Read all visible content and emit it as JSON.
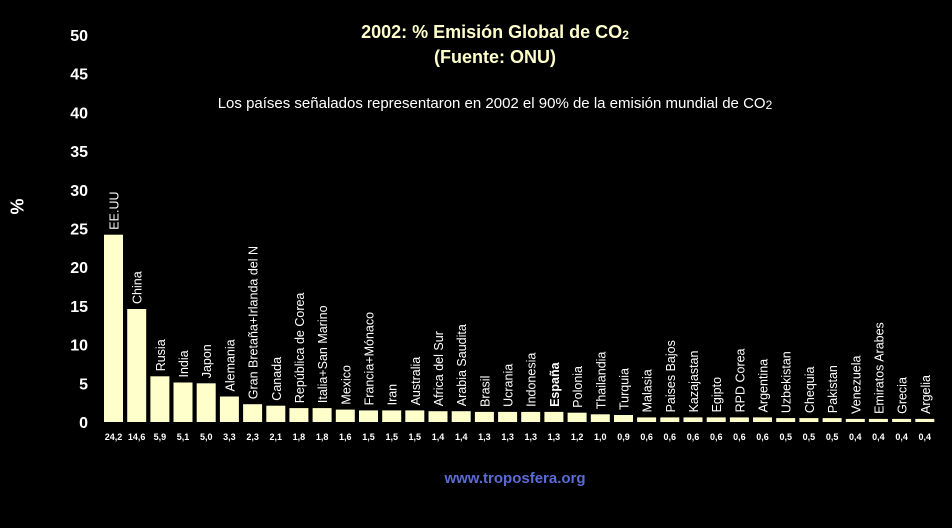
{
  "title": {
    "main": "2002: % Emisión Global de CO",
    "sub": "2"
  },
  "subtitle": "(Fuente: ONU)",
  "note": {
    "main": "Los países señalados representaron en 2002 el 90% de la emisión mundial de CO",
    "sub": "2"
  },
  "source": "www.troposfera.org",
  "colors": {
    "bar": "#ffffcc",
    "background": "#000000",
    "text": "#ffffff",
    "source": "#5b6bd6"
  },
  "chart_data": {
    "type": "bar",
    "title": "2002: % Emisión Global de CO2",
    "ylabel": "%",
    "ylim": [
      0,
      50
    ],
    "yticks": [
      "0",
      "5",
      "10",
      "15",
      "20",
      "25",
      "30",
      "35",
      "40",
      "45",
      "50"
    ],
    "grid": false,
    "categories": [
      "EE.UU",
      "China",
      "Rusia",
      "India",
      "Japon",
      "Alemania",
      "Gran Bretaña+Irlanda del N",
      "Canada",
      "República de Corea",
      "Italia+San Marino",
      "Mexico",
      "Francia+Mónaco",
      "Iran",
      "Australia",
      "Africa del Sur",
      "Arabia Saudita",
      "Brasil",
      "Ucrania",
      "Indonesia",
      "España",
      "Polonia",
      "Thailandia",
      "Turquia",
      "Malasia",
      "Paises Bajos",
      "Kazajastan",
      "Egipto",
      "RPD Corea",
      "Argentina",
      "Uzbekistan",
      "Chequia",
      "Pakistan",
      "Venezuela",
      "Emiratos Arabes",
      "Grecia",
      "Argelia"
    ],
    "values": [
      24.2,
      14.6,
      5.9,
      5.1,
      5.0,
      3.3,
      2.3,
      2.1,
      1.8,
      1.8,
      1.6,
      1.5,
      1.5,
      1.5,
      1.4,
      1.4,
      1.3,
      1.3,
      1.3,
      1.3,
      1.2,
      1.0,
      0.9,
      0.6,
      0.6,
      0.6,
      0.6,
      0.6,
      0.6,
      0.5,
      0.5,
      0.5,
      0.4,
      0.4,
      0.4,
      0.4
    ],
    "value_labels": [
      "24,2",
      "14,6",
      "5,9",
      "5,1",
      "5,0",
      "3,3",
      "2,3",
      "2,1",
      "1,8",
      "1,8",
      "1,6",
      "1,5",
      "1,5",
      "1,5",
      "1,4",
      "1,4",
      "1,3",
      "1,3",
      "1,3",
      "1,3",
      "1,2",
      "1,0",
      "0,9",
      "0,6",
      "0,6",
      "0,6",
      "0,6",
      "0,6",
      "0,6",
      "0,5",
      "0,5",
      "0,5",
      "0,4",
      "0,4",
      "0,4",
      "0,4"
    ],
    "highlight": "España"
  }
}
